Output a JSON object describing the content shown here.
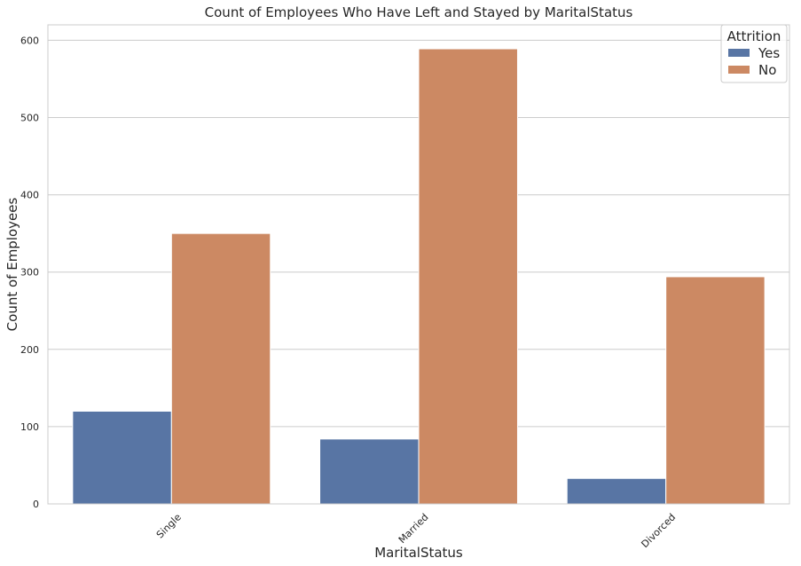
{
  "chart_data": {
    "type": "bar",
    "title": "Count of Employees Who Have Left and Stayed by MaritalStatus",
    "xlabel": "MaritalStatus",
    "ylabel": "Count of Employees",
    "categories": [
      "Single",
      "Married",
      "Divorced"
    ],
    "series": [
      {
        "name": "Yes",
        "values": [
          120,
          84,
          33
        ],
        "color": "#5875a4"
      },
      {
        "name": "No",
        "values": [
          350,
          589,
          294
        ],
        "color": "#cc8963"
      }
    ],
    "ylim": [
      0,
      620
    ],
    "yticks": [
      0,
      100,
      200,
      300,
      400,
      500,
      600
    ],
    "grid": "horizontal",
    "legend": {
      "title": "Attrition",
      "placement": "top-right"
    },
    "xtick_rotation": "45 degrees"
  }
}
